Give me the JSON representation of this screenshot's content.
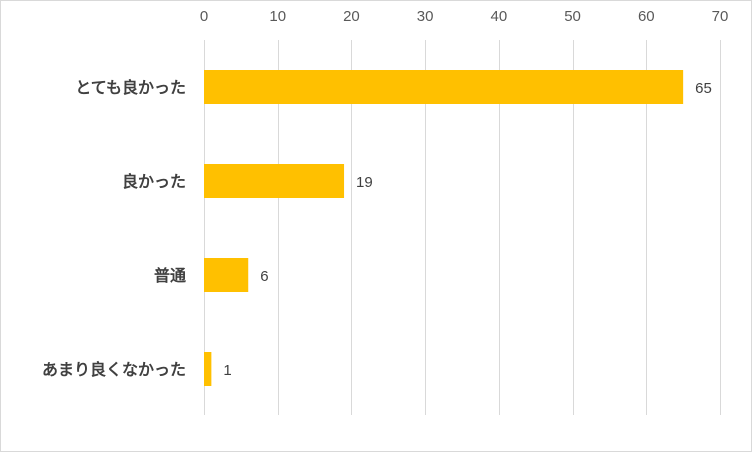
{
  "chart_data": {
    "type": "bar",
    "orientation": "horizontal",
    "categories": [
      "とても良かった",
      "良かった",
      "普通",
      "あまり良くなかった"
    ],
    "values": [
      65,
      19,
      6,
      1
    ],
    "xlim": [
      0,
      70
    ],
    "xticks": [
      0,
      10,
      20,
      30,
      40,
      50,
      60,
      70
    ],
    "axis_position": "top",
    "grid": true,
    "data_labels": true,
    "bar_color": "#FFC000",
    "gridline_color": "#d9d9d9"
  }
}
